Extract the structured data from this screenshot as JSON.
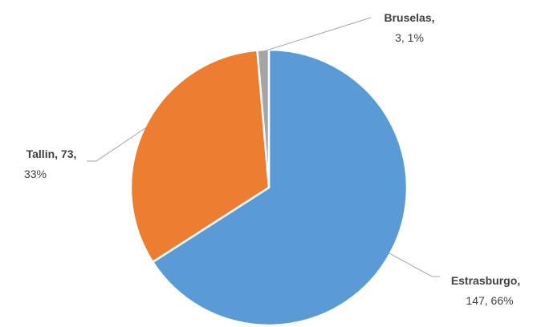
{
  "chart_data": {
    "type": "pie",
    "title": "",
    "slices": [
      {
        "label": "Estrasburgo",
        "value": 147,
        "percent": "66%",
        "color": "#5b9bd5"
      },
      {
        "label": "Tallin",
        "value": 73,
        "percent": "33%",
        "color": "#ed7d31"
      },
      {
        "label": "Bruselas",
        "value": 3,
        "percent": "1%",
        "color": "#a5a5a5"
      }
    ],
    "start_angle_deg": 0,
    "direction": "clockwise",
    "data_labels": "category, value, percent",
    "legend": "none"
  }
}
